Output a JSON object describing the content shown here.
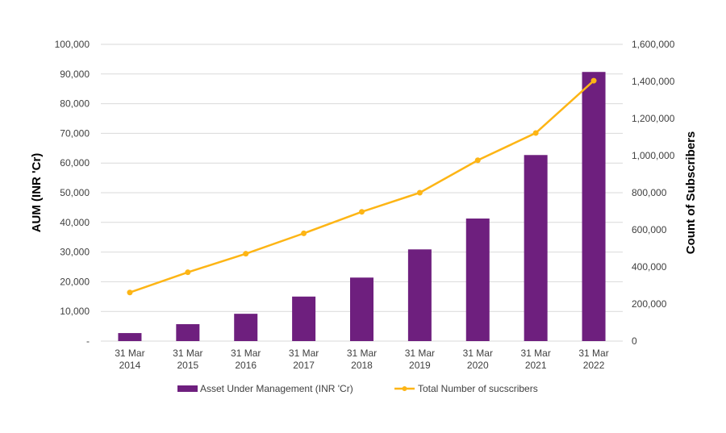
{
  "chart_data": {
    "type": "bar+line",
    "categories": [
      "31 Mar 2014",
      "31 Mar 2015",
      "31 Mar 2016",
      "31 Mar 2017",
      "31 Mar 2018",
      "31 Mar 2019",
      "31 Mar 2020",
      "31 Mar 2021",
      "31 Mar 2022"
    ],
    "category_lines": [
      [
        "31 Mar",
        "2014"
      ],
      [
        "31 Mar",
        "2015"
      ],
      [
        "31 Mar",
        "2016"
      ],
      [
        "31 Mar",
        "2017"
      ],
      [
        "31 Mar",
        "2018"
      ],
      [
        "31 Mar",
        "2019"
      ],
      [
        "31 Mar",
        "2020"
      ],
      [
        "31 Mar",
        "2021"
      ],
      [
        "31 Mar",
        "2022"
      ]
    ],
    "series": [
      {
        "name": "Asset Under Management (INR 'Cr)",
        "type": "bar",
        "axis": "left",
        "color": "#6E1F7E",
        "values": [
          2700,
          5700,
          9200,
          15000,
          21400,
          30900,
          41300,
          62700,
          90700
        ]
      },
      {
        "name": "Total Number of sucscribers",
        "type": "line",
        "axis": "right",
        "color": "#FDB515",
        "values": [
          262000,
          371000,
          471000,
          581000,
          697000,
          800000,
          975000,
          1122000,
          1404000
        ]
      }
    ],
    "ylabel": "AUM (INR 'Cr)",
    "ylabel_right": "Count of Subscribers",
    "ylim": [
      0,
      100000
    ],
    "ylim_right": [
      0,
      1600000
    ],
    "yticks": [
      "-",
      "10,000",
      "20,000",
      "30,000",
      "40,000",
      "50,000",
      "60,000",
      "70,000",
      "80,000",
      "90,000",
      "100,000"
    ],
    "yticks_right": [
      "0",
      "200,000",
      "400,000",
      "600,000",
      "800,000",
      "1,000,000",
      "1,200,000",
      "1,400,000",
      "1,600,000"
    ],
    "grid": true,
    "legend_position": "bottom"
  }
}
